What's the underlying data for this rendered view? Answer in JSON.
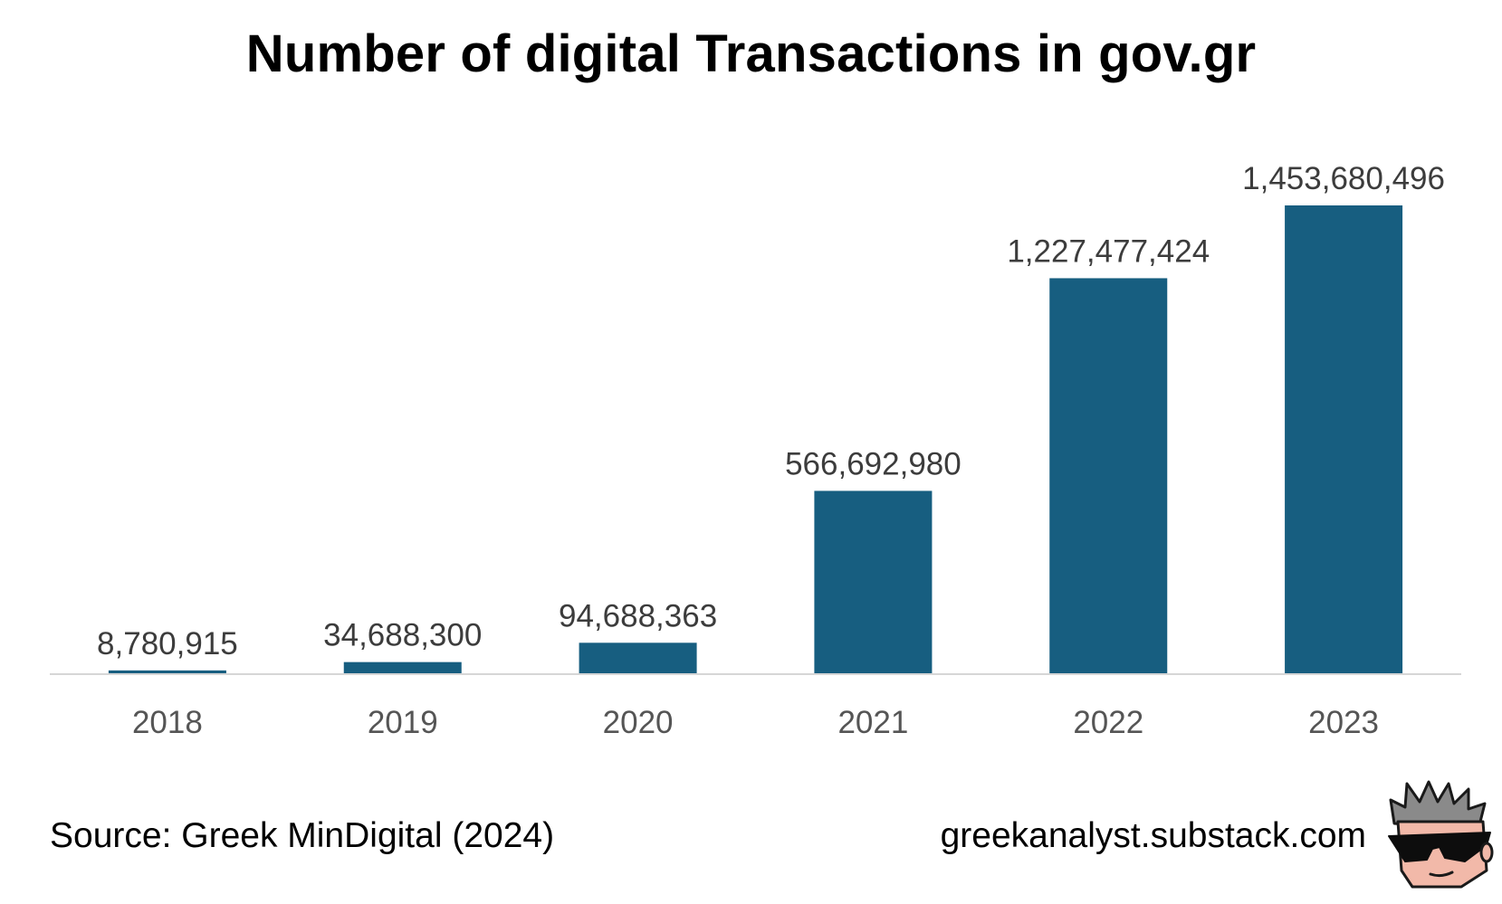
{
  "title": "Number of digital Transactions in gov.gr",
  "source": "Source: Greek MinDigital (2024)",
  "site": "greekanalyst.substack.com",
  "colors": {
    "bar": "#175e80",
    "axis": "#d6d6d6",
    "label": "#3c3c3c",
    "tick": "#555555"
  },
  "chart_data": {
    "type": "bar",
    "categories": [
      "2018",
      "2019",
      "2020",
      "2021",
      "2022",
      "2023"
    ],
    "values": [
      8780915,
      34688300,
      94688363,
      566692980,
      1227477424,
      1453680496
    ],
    "data_labels": [
      "8,780,915",
      "34,688,300",
      "94,688,363",
      "566,692,980",
      "1,227,477,424",
      "1,453,680,496"
    ],
    "title": "Number of digital Transactions in gov.gr",
    "xlabel": "",
    "ylabel": "",
    "ylim": [
      0,
      1453680496
    ],
    "grid": false,
    "legend": "none"
  }
}
